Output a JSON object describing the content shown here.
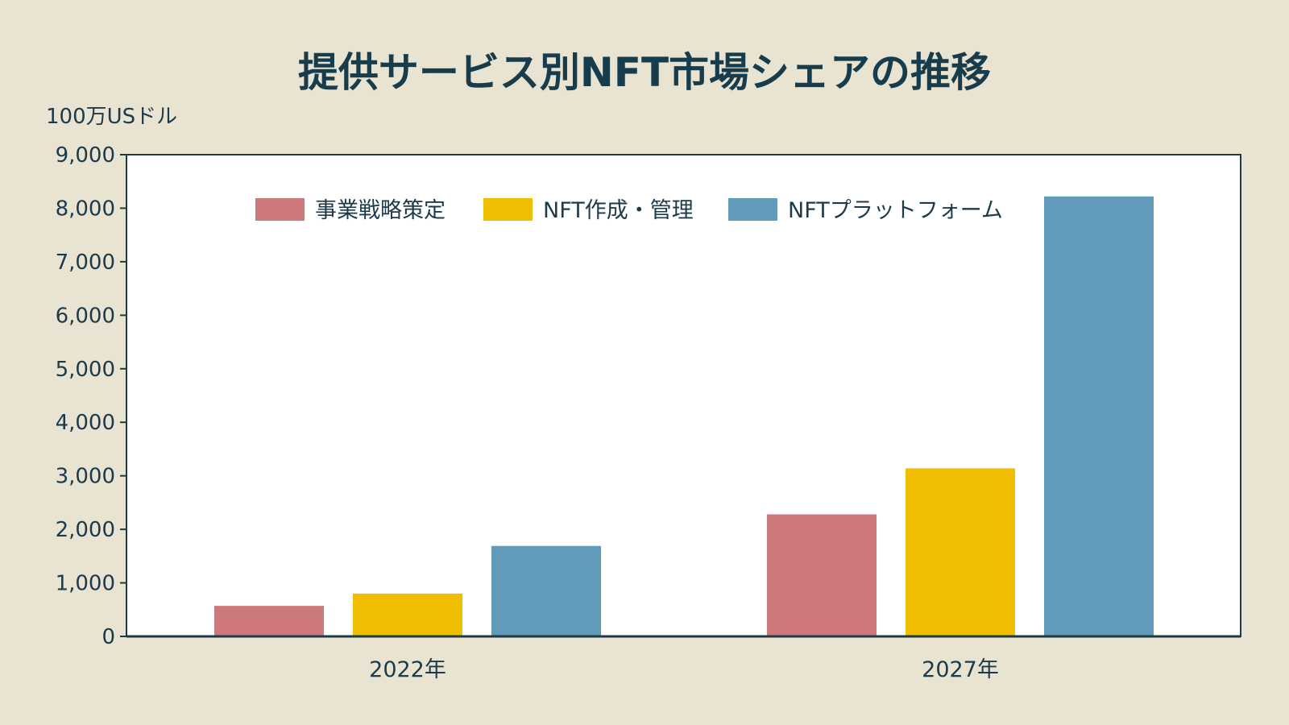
{
  "chart_data": {
    "type": "bar",
    "title": "提供サービス別NFT市場シェアの推移",
    "ylabel": "100万USドル",
    "xlabel": "",
    "categories": [
      "2022年",
      "2027年"
    ],
    "series": [
      {
        "name": "事業戦略策定",
        "color": "#cd787b",
        "values": [
          570,
          2280
        ]
      },
      {
        "name": "NFT作成・管理",
        "color": "#f0be00",
        "values": [
          800,
          3140
        ]
      },
      {
        "name": "NFTプラットフォーム",
        "color": "#619bb9",
        "values": [
          1690,
          8220
        ]
      }
    ],
    "ylim": [
      0,
      9000
    ],
    "yticks": [
      "0",
      "1,000",
      "2,000",
      "3,000",
      "4,000",
      "5,000",
      "6,000",
      "7,000",
      "8,000",
      "9,000"
    ],
    "grid": false,
    "legend": "top-center"
  }
}
